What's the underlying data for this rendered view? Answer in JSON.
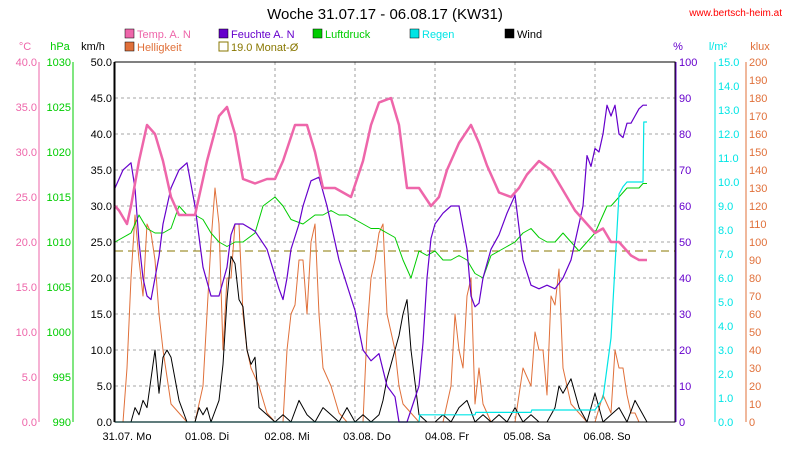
{
  "title": "Woche 31.07.17 - 06.08.17 (KW31)",
  "website": "www.bertsch-heim.at",
  "colors": {
    "temp": "#ee66aa",
    "humidity": "#6600cc",
    "pressure": "#00cc00",
    "rain": "#00e5e5",
    "wind": "#000000",
    "bright": "#e0703a",
    "avg": "#887700",
    "grid": "#888888"
  },
  "legend": [
    {
      "label": "Temp. A. N",
      "color": "#ee66aa",
      "style": "fill"
    },
    {
      "label": "Feuchte A. N",
      "color": "#6600cc",
      "style": "fill"
    },
    {
      "label": "Luftdruck",
      "color": "#00cc00",
      "style": "fill"
    },
    {
      "label": "Regen",
      "color": "#00e5e5",
      "style": "fill"
    },
    {
      "label": "Wind",
      "color": "#000000",
      "style": "fill"
    },
    {
      "label": "Helligkeit",
      "color": "#e0703a",
      "style": "fill"
    },
    {
      "label": "19.0 Monat-Ø",
      "color": "#887700",
      "style": "outline"
    }
  ],
  "axes_units": {
    "temp": "°C",
    "pressure": "hPa",
    "wind": "km/h",
    "humidity": "%",
    "rain": "l/m²",
    "bright": "klux"
  },
  "x_labels": [
    "31.07.  Mo",
    "01.08.  Di",
    "02.08.  Mi",
    "03.08.  Do",
    "04.08.  Fr",
    "05.08.  Sa",
    "06.08.  So"
  ],
  "chart_data": {
    "type": "line",
    "title": "Woche 31.07.17 - 06.08.17 (KW31)",
    "grid": true,
    "x_categories": [
      "31.07. Mo",
      "01.08. Di",
      "02.08. Mi",
      "03.08. Do",
      "04.08. Fr",
      "05.08. Sa",
      "06.08. So"
    ],
    "axes": {
      "temp": {
        "unit": "°C",
        "ylim": [
          0,
          40
        ],
        "ticks": [
          "0.0",
          "5.0",
          "10.0",
          "15.0",
          "20.0",
          "25.0",
          "30.0",
          "35.0",
          "40.0"
        ]
      },
      "pressure": {
        "unit": "hPa",
        "ylim": [
          990,
          1030
        ],
        "ticks": [
          "990",
          "995",
          "1000",
          "1005",
          "1010",
          "1015",
          "1020",
          "1025",
          "1030"
        ]
      },
      "wind": {
        "unit": "km/h",
        "ylim": [
          0,
          50
        ],
        "ticks": [
          "0.0",
          "5.0",
          "10.0",
          "15.0",
          "20.0",
          "25.0",
          "30.0",
          "35.0",
          "40.0",
          "45.0",
          "50.0"
        ]
      },
      "humidity": {
        "unit": "%",
        "ylim": [
          0,
          100
        ],
        "ticks": [
          "0",
          "10",
          "20",
          "30",
          "40",
          "50",
          "60",
          "70",
          "80",
          "90",
          "100"
        ]
      },
      "rain": {
        "unit": "l/m²",
        "ylim": [
          0,
          15
        ],
        "ticks": [
          "0.0",
          "1.0",
          "2.0",
          "3.0",
          "4.0",
          "5.0",
          "6.0",
          "7.0",
          "8.0",
          "9.0",
          "10.0",
          "11.0",
          "12.0",
          "13.0",
          "14.0",
          "15.0"
        ]
      },
      "bright": {
        "unit": "klux",
        "ylim": [
          0,
          200
        ],
        "ticks": [
          "0",
          "10",
          "20",
          "30",
          "40",
          "50",
          "60",
          "70",
          "80",
          "90",
          "100",
          "110",
          "120",
          "130",
          "140",
          "150",
          "160",
          "170",
          "180",
          "190",
          "200"
        ]
      }
    },
    "monthly_avg": {
      "name": "19.0 Monat-Ø",
      "value": 19.0
    },
    "series": [
      {
        "name": "Temp. A. N",
        "axis": "temp",
        "x": [
          0,
          0.05,
          0.15,
          0.2,
          0.3,
          0.4,
          0.5,
          0.6,
          0.7,
          0.8,
          0.9,
          1,
          1.15,
          1.3,
          1.4,
          1.5,
          1.6,
          1.75,
          1.9,
          2,
          2.1,
          2.25,
          2.4,
          2.5,
          2.6,
          2.75,
          2.95,
          3.1,
          3.2,
          3.3,
          3.45,
          3.55,
          3.65,
          3.8,
          3.95,
          4.05,
          4.15,
          4.3,
          4.45,
          4.55,
          4.65,
          4.8,
          4.95,
          5.05,
          5.15,
          5.3,
          5.45,
          5.55,
          5.65,
          5.75,
          5.9,
          6,
          6.1,
          6.2,
          6.3,
          6.45,
          6.55,
          6.65
        ],
        "y": [
          24,
          23.5,
          22,
          24,
          29,
          33,
          32,
          29,
          25,
          23,
          23,
          23,
          29,
          34,
          35,
          32,
          27,
          26.5,
          27,
          27,
          29,
          33,
          33,
          30,
          26,
          26,
          25,
          29,
          33,
          35.5,
          36,
          33,
          26,
          26,
          24,
          25,
          28,
          31,
          33,
          31,
          28.5,
          25.5,
          25,
          26,
          27.5,
          29,
          28,
          26.5,
          25,
          23.5,
          22,
          21,
          21.5,
          20,
          20,
          18.5,
          18,
          18
        ]
      },
      {
        "name": "Feuchte A. N",
        "axis": "humidity",
        "x": [
          0,
          0.1,
          0.2,
          0.25,
          0.3,
          0.35,
          0.4,
          0.45,
          0.5,
          0.55,
          0.6,
          0.7,
          0.8,
          0.9,
          1,
          1.1,
          1.2,
          1.3,
          1.4,
          1.45,
          1.5,
          1.6,
          1.75,
          1.9,
          2.05,
          2.1,
          2.15,
          2.2,
          2.3,
          2.35,
          2.45,
          2.55,
          2.65,
          2.8,
          3,
          3.1,
          3.2,
          3.3,
          3.4,
          3.5,
          3.55,
          3.6,
          3.65,
          3.8,
          3.85,
          3.9,
          3.95,
          4,
          4.1,
          4.2,
          4.3,
          4.4,
          4.45,
          4.5,
          4.55,
          4.6,
          4.7,
          4.8,
          4.9,
          5,
          5.1,
          5.2,
          5.3,
          5.4,
          5.5,
          5.6,
          5.7,
          5.75,
          5.8,
          5.85,
          5.9,
          5.95,
          6,
          6.05,
          6.1,
          6.15,
          6.2,
          6.25,
          6.3,
          6.35,
          6.4,
          6.45,
          6.5,
          6.55,
          6.6,
          6.65
        ],
        "y": [
          65,
          70,
          72,
          65,
          50,
          40,
          35,
          34,
          40,
          46,
          55,
          65,
          70,
          72,
          60,
          43,
          35,
          35,
          43,
          52,
          55,
          55,
          53,
          48,
          37,
          34,
          40,
          48,
          55,
          60,
          67,
          68,
          60,
          45,
          31,
          20,
          17,
          19,
          10,
          7,
          0,
          0,
          0,
          10,
          22,
          40,
          51,
          55,
          58,
          60,
          60,
          48,
          35,
          32,
          33,
          40,
          48,
          52,
          58,
          63,
          45,
          38,
          37,
          38,
          37,
          40,
          45,
          50,
          55,
          60,
          74,
          71,
          76,
          75,
          80,
          88,
          85,
          88,
          80,
          79,
          83,
          83,
          85,
          87,
          88,
          88
        ]
      },
      {
        "name": "Luftdruck",
        "axis": "pressure",
        "x": [
          0,
          0.2,
          0.3,
          0.4,
          0.5,
          0.6,
          0.7,
          0.8,
          0.9,
          1,
          1.1,
          1.2,
          1.3,
          1.4,
          1.5,
          1.6,
          1.75,
          1.85,
          2,
          2.1,
          2.2,
          2.35,
          2.5,
          2.6,
          2.7,
          2.8,
          2.9,
          3,
          3.1,
          3.2,
          3.3,
          3.4,
          3.5,
          3.6,
          3.65,
          3.7,
          3.8,
          3.9,
          4,
          4.1,
          4.2,
          4.3,
          4.4,
          4.5,
          4.6,
          4.7,
          4.8,
          4.9,
          5,
          5.1,
          5.2,
          5.3,
          5.4,
          5.5,
          5.6,
          5.7,
          5.8,
          5.9,
          6,
          6.1,
          6.15,
          6.2,
          6.3,
          6.4,
          6.5,
          6.55,
          6.6,
          6.65
        ],
        "y": [
          1010,
          1011,
          1013,
          1011.5,
          1011,
          1011,
          1011.5,
          1014,
          1013,
          1013,
          1012.5,
          1011,
          1010,
          1009.5,
          1010,
          1010,
          1011,
          1014,
          1015,
          1014,
          1012.5,
          1012,
          1013,
          1013,
          1013.5,
          1013,
          1013,
          1012.5,
          1012,
          1011.5,
          1011.5,
          1011,
          1010.5,
          1008,
          1007,
          1006,
          1009,
          1008.5,
          1009,
          1008,
          1008,
          1008.5,
          1008,
          1006.5,
          1006,
          1008.5,
          1009,
          1009.5,
          1010,
          1011,
          1011.5,
          1010.5,
          1010,
          1010,
          1011,
          1010,
          1009,
          1010,
          1011,
          1013,
          1014,
          1014,
          1015,
          1016,
          1016,
          1016,
          1016.5,
          1016.5
        ]
      },
      {
        "name": "Regen",
        "axis": "rain",
        "x": [
          0,
          3.8,
          3.81,
          4.5,
          4.51,
          5.2,
          5.21,
          6,
          6.1,
          6.2,
          6.3,
          6.35,
          6.4,
          6.45,
          6.6,
          6.61,
          6.65
        ],
        "y": [
          0,
          0,
          0.3,
          0.3,
          0.4,
          0.4,
          0.5,
          0.5,
          1.0,
          3.5,
          9.5,
          9.8,
          10.0,
          10.0,
          10.0,
          12.5,
          12.5
        ]
      },
      {
        "name": "Wind",
        "axis": "wind",
        "x": [
          0,
          0.2,
          0.25,
          0.3,
          0.35,
          0.4,
          0.45,
          0.5,
          0.55,
          0.6,
          0.65,
          0.7,
          0.8,
          0.9,
          1,
          1.05,
          1.1,
          1.15,
          1.2,
          1.3,
          1.35,
          1.4,
          1.45,
          1.5,
          1.55,
          1.6,
          1.65,
          1.7,
          1.75,
          1.8,
          1.9,
          2,
          2.1,
          2.2,
          2.3,
          2.4,
          2.5,
          2.6,
          2.7,
          2.8,
          2.9,
          3,
          3.1,
          3.2,
          3.3,
          3.35,
          3.4,
          3.45,
          3.5,
          3.55,
          3.6,
          3.65,
          3.7,
          3.8,
          3.9,
          4,
          4.1,
          4.2,
          4.3,
          4.4,
          4.5,
          4.6,
          4.7,
          4.8,
          4.9,
          5,
          5.1,
          5.2,
          5.3,
          5.4,
          5.5,
          5.55,
          5.6,
          5.7,
          5.8,
          5.9,
          6,
          6.1,
          6.2,
          6.3,
          6.4,
          6.5,
          6.6,
          6.65
        ],
        "y": [
          0,
          0,
          2,
          1,
          3,
          2,
          6,
          10,
          4,
          9,
          10,
          9,
          3,
          0,
          0,
          2,
          1,
          2,
          0,
          3,
          8,
          17,
          23,
          22,
          17,
          16,
          10,
          8,
          9,
          2,
          1,
          0,
          1,
          0,
          3,
          1,
          0,
          2,
          1,
          0,
          2,
          0,
          1,
          0,
          1,
          3,
          6,
          8,
          10,
          12,
          15,
          17,
          10,
          1,
          0,
          0,
          1,
          0,
          2,
          3,
          0,
          1,
          0,
          1,
          0,
          2,
          0,
          1,
          0,
          0,
          2,
          5,
          4,
          6,
          2,
          0,
          4,
          0,
          1,
          2,
          0,
          3,
          1,
          0
        ]
      },
      {
        "name": "Helligkeit",
        "axis": "bright",
        "x": [
          0,
          0.1,
          0.15,
          0.2,
          0.25,
          0.3,
          0.35,
          0.4,
          0.45,
          0.5,
          0.55,
          0.6,
          0.7,
          0.8,
          0.9,
          1,
          1.1,
          1.2,
          1.25,
          1.3,
          1.35,
          1.4,
          1.45,
          1.5,
          1.55,
          1.6,
          1.65,
          1.7,
          1.8,
          1.9,
          2,
          2.1,
          2.15,
          2.2,
          2.25,
          2.3,
          2.35,
          2.4,
          2.45,
          2.5,
          2.55,
          2.6,
          2.7,
          2.8,
          2.9,
          3,
          3.1,
          3.15,
          3.2,
          3.25,
          3.3,
          3.35,
          3.4,
          3.45,
          3.5,
          3.55,
          3.6,
          3.7,
          3.8,
          3.9,
          4,
          4.1,
          4.2,
          4.25,
          4.3,
          4.35,
          4.4,
          4.45,
          4.5,
          4.55,
          4.6,
          4.65,
          4.7,
          4.8,
          4.9,
          5,
          5.1,
          5.2,
          5.25,
          5.3,
          5.35,
          5.4,
          5.45,
          5.5,
          5.55,
          5.6,
          5.7,
          5.8,
          5.9,
          6,
          6.1,
          6.2,
          6.25,
          6.3,
          6.35,
          6.4,
          6.45,
          6.5,
          6.55,
          6.6,
          6.65
        ],
        "y": [
          0,
          0,
          30,
          80,
          115,
          90,
          70,
          110,
          105,
          90,
          60,
          40,
          10,
          5,
          0,
          0,
          20,
          100,
          130,
          110,
          40,
          80,
          80,
          110,
          110,
          60,
          40,
          30,
          20,
          5,
          0,
          0,
          40,
          60,
          65,
          90,
          90,
          60,
          100,
          110,
          60,
          30,
          20,
          5,
          0,
          0,
          0,
          50,
          80,
          90,
          105,
          110,
          60,
          50,
          40,
          20,
          10,
          5,
          0,
          0,
          0,
          0,
          20,
          60,
          40,
          30,
          70,
          80,
          10,
          30,
          10,
          5,
          0,
          0,
          0,
          0,
          30,
          20,
          50,
          40,
          40,
          15,
          70,
          65,
          85,
          30,
          10,
          5,
          0,
          0,
          15,
          5,
          40,
          30,
          30,
          15,
          5,
          5,
          0,
          0,
          0
        ]
      }
    ]
  }
}
